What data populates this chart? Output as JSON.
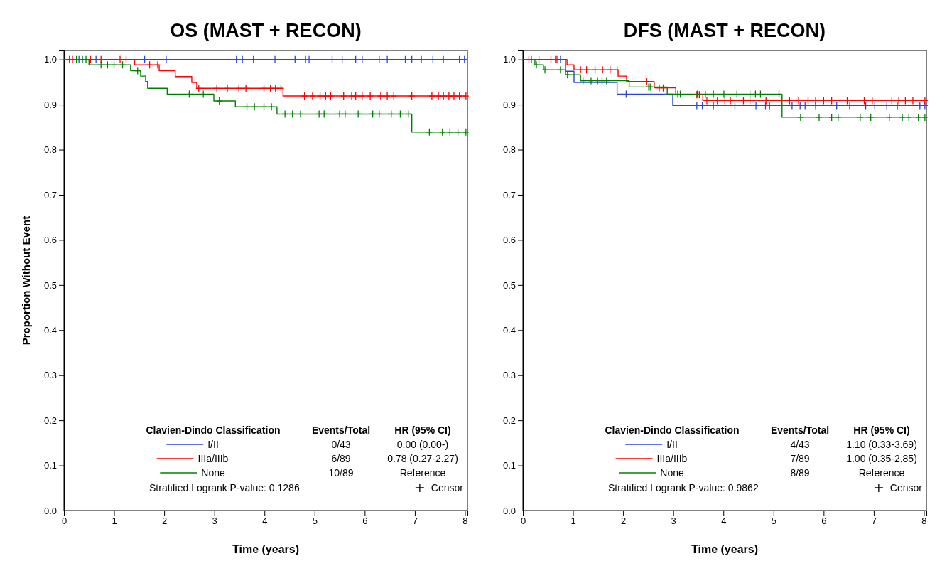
{
  "chart_data": [
    {
      "type": "step",
      "title": "OS (MAST + RECON)",
      "xlabel": "Time (years)",
      "ylabel": "Proportion Without Event",
      "legend_title": "Clavien-Dindo Classification",
      "legend": "bottom",
      "line_style": "solid",
      "xlim": [
        0,
        8.05
      ],
      "ylim": [
        0,
        1.02
      ],
      "xticks": [
        0,
        1,
        2,
        3,
        4,
        5,
        6,
        7,
        8
      ],
      "yticks": [
        {
          "value": 0,
          "label": "0.0"
        },
        {
          "value": 0.1,
          "label": "0.1"
        },
        {
          "value": 0.2,
          "label": "0.2"
        },
        {
          "value": 0.3,
          "label": "0.3"
        },
        {
          "value": 0.4,
          "label": "0.4"
        },
        {
          "value": 0.5,
          "label": "0.5"
        },
        {
          "value": 0.6,
          "label": "0.6"
        },
        {
          "value": 0.7,
          "label": "0.7"
        },
        {
          "value": 0.8,
          "label": "0.8"
        },
        {
          "value": 0.9,
          "label": "0.9"
        },
        {
          "value": 1,
          "label": "1.0"
        }
      ],
      "annotations": [
        "Events/Total",
        "HR (95% CI)",
        "0/43",
        "0.00 (0.00-)",
        "6/89",
        "0.78 (0.27-2.27)",
        "10/89",
        "Reference",
        "Stratified Logrank P-value: 0.1286",
        "Censor"
      ],
      "series": [
        {
          "name": "I/II",
          "color": "#2b45d9",
          "x": [
            0,
            8.02
          ],
          "values": [
            1,
            1
          ]
        },
        {
          "name": "IIIa/IIIb",
          "color": "#ff0000",
          "x": [
            0,
            1.41,
            1.9,
            2.22,
            2.55,
            2.65,
            4.37,
            8.02
          ],
          "values": [
            1,
            0.988,
            0.975,
            0.962,
            0.949,
            0.936,
            0.919,
            0.919
          ]
        },
        {
          "name": "None",
          "color": "#008000",
          "x": [
            0,
            0.5,
            1.33,
            1.53,
            1.63,
            1.67,
            2.06,
            2.99,
            3.42,
            4.25,
            6.94,
            8.02
          ],
          "values": [
            1,
            0.988,
            0.975,
            0.963,
            0.951,
            0.936,
            0.923,
            0.908,
            0.895,
            0.879,
            0.839,
            0.839
          ]
        },
        {
          "type": "scatter",
          "marker": "cross",
          "color": "#2b45d9",
          "x": [
            0.3,
            0.64,
            1.61,
            2.04,
            3.44,
            3.56,
            3.78,
            4.21,
            4.61,
            4.82,
            4.89,
            5.35,
            5.55,
            5.82,
            5.95,
            6.29,
            6.45,
            6.81,
            6.94,
            7.13,
            7.36,
            7.57,
            7.89,
            7.99
          ],
          "values": [
            1,
            1,
            1,
            1,
            1,
            1,
            1,
            1,
            1,
            1,
            1,
            1,
            1,
            1,
            1,
            1,
            1,
            1,
            1,
            1,
            1,
            1,
            1,
            1
          ]
        },
        {
          "type": "scatter",
          "marker": "cross",
          "color": "#ff0000",
          "x": [
            0.11,
            0.17,
            0.53,
            0.74,
            1.12,
            1.24,
            1.71,
            1.87,
            2.69,
            3.05,
            3.26,
            3.49,
            3.63,
            3.99,
            4.12,
            4.22,
            4.33,
            4.8,
            4.96,
            5.11,
            5.22,
            5.32,
            5.58,
            5.74,
            5.82,
            5.95,
            6.11,
            6.32,
            6.45,
            6.58,
            6.94,
            7.34,
            7.47,
            7.57,
            7.68,
            7.78,
            7.89,
            8.02
          ],
          "values": [
            1,
            1,
            1,
            1,
            1,
            1,
            0.988,
            0.988,
            0.936,
            0.936,
            0.936,
            0.936,
            0.936,
            0.936,
            0.936,
            0.936,
            0.936,
            0.919,
            0.919,
            0.919,
            0.919,
            0.919,
            0.919,
            0.919,
            0.919,
            0.919,
            0.919,
            0.919,
            0.919,
            0.919,
            0.919,
            0.919,
            0.919,
            0.919,
            0.919,
            0.919,
            0.919,
            0.919
          ]
        },
        {
          "type": "scatter",
          "marker": "cross",
          "color": "#008000",
          "x": [
            0.25,
            0.37,
            0.44,
            0.74,
            0.87,
            1.0,
            1.17,
            1.47,
            2.5,
            2.78,
            3.1,
            3.65,
            3.8,
            3.99,
            4.14,
            4.41,
            4.56,
            4.72,
            5.09,
            5.19,
            5.5,
            5.61,
            5.87,
            6.16,
            6.29,
            6.53,
            6.71,
            6.87,
            7.29,
            7.55,
            7.7,
            7.86,
            8.02
          ],
          "values": [
            1,
            1,
            1,
            0.988,
            0.988,
            0.988,
            0.988,
            0.975,
            0.923,
            0.923,
            0.908,
            0.895,
            0.895,
            0.895,
            0.895,
            0.879,
            0.879,
            0.879,
            0.879,
            0.879,
            0.879,
            0.879,
            0.879,
            0.879,
            0.879,
            0.879,
            0.879,
            0.879,
            0.839,
            0.839,
            0.839,
            0.839,
            0.839
          ]
        }
      ]
    },
    {
      "type": "step",
      "title": "DFS (MAST + RECON)",
      "xlabel": "Time (years)",
      "legend_title": "Clavien-Dindo Classification",
      "legend": "bottom",
      "line_style": "solid",
      "xlim": [
        0,
        8.05
      ],
      "ylim": [
        0,
        1.02
      ],
      "xticks": [
        0,
        1,
        2,
        3,
        4,
        5,
        6,
        7,
        8
      ],
      "yticks": [
        {
          "value": 0,
          "label": "0.0"
        },
        {
          "value": 0.1,
          "label": "0.1"
        },
        {
          "value": 0.2,
          "label": "0.2"
        },
        {
          "value": 0.3,
          "label": "0.3"
        },
        {
          "value": 0.4,
          "label": "0.4"
        },
        {
          "value": 0.5,
          "label": "0.5"
        },
        {
          "value": 0.6,
          "label": "0.6"
        },
        {
          "value": 0.7,
          "label": "0.7"
        },
        {
          "value": 0.8,
          "label": "0.8"
        },
        {
          "value": 0.9,
          "label": "0.9"
        },
        {
          "value": 1,
          "label": "1.0"
        }
      ],
      "annotations": [
        "Events/Total",
        "HR (95% CI)",
        "4/43",
        "1.10 (0.33-3.69)",
        "7/89",
        "1.00 (0.35-2.85)",
        "8/89",
        "Reference",
        "Stratified Logrank P-value: 0.9862",
        "Censor"
      ],
      "series": [
        {
          "name": "I/II",
          "color": "#2b45d9",
          "x": [
            0,
            0.85,
            1.02,
            1.88,
            2.99,
            8.02
          ],
          "values": [
            1,
            0.974,
            0.949,
            0.923,
            0.898,
            0.898
          ]
        },
        {
          "name": "IIIa/IIIb",
          "color": "#ff0000",
          "x": [
            0,
            0.88,
            1.02,
            1.9,
            2.07,
            2.62,
            3.05,
            3.59,
            8.02
          ],
          "values": [
            1,
            0.988,
            0.977,
            0.963,
            0.951,
            0.937,
            0.922,
            0.909,
            0.909
          ]
        },
        {
          "name": "None",
          "color": "#008000",
          "x": [
            0,
            0.24,
            0.41,
            0.85,
            1.15,
            2.12,
            2.88,
            5.17,
            8.02
          ],
          "values": [
            1,
            0.988,
            0.977,
            0.966,
            0.953,
            0.939,
            0.923,
            0.872,
            0.872
          ]
        },
        {
          "type": "scatter",
          "marker": "cross",
          "color": "#2b45d9",
          "x": [
            0.32,
            0.65,
            0.75,
            2.06,
            3.47,
            3.58,
            3.8,
            4.23,
            4.65,
            4.84,
            4.92,
            5.37,
            5.53,
            5.63,
            5.84,
            6.26,
            6.52,
            6.84,
            7.02,
            7.26,
            7.47,
            7.92,
            8.02
          ],
          "values": [
            1,
            1,
            1,
            0.923,
            0.898,
            0.898,
            0.898,
            0.898,
            0.898,
            0.898,
            0.898,
            0.898,
            0.898,
            0.898,
            0.898,
            0.898,
            0.898,
            0.898,
            0.898,
            0.898,
            0.898,
            0.898,
            0.898
          ]
        },
        {
          "type": "scatter",
          "marker": "cross",
          "color": "#ff0000",
          "x": [
            0.12,
            0.17,
            0.56,
            0.68,
            1.15,
            1.27,
            1.44,
            1.59,
            1.74,
            1.88,
            2.47,
            2.72,
            2.8,
            3.47,
            3.52,
            3.67,
            3.88,
            4.03,
            4.14,
            4.4,
            4.53,
            4.85,
            5.16,
            5.32,
            5.5,
            5.69,
            5.84,
            6.0,
            6.16,
            6.47,
            6.81,
            6.97,
            7.36,
            7.5,
            7.63,
            7.78,
            8.02
          ],
          "values": [
            1,
            1,
            1,
            1,
            0.977,
            0.977,
            0.977,
            0.977,
            0.977,
            0.977,
            0.951,
            0.937,
            0.937,
            0.922,
            0.922,
            0.909,
            0.909,
            0.909,
            0.909,
            0.909,
            0.909,
            0.909,
            0.909,
            0.909,
            0.909,
            0.909,
            0.909,
            0.909,
            0.909,
            0.909,
            0.909,
            0.909,
            0.909,
            0.909,
            0.909,
            0.909,
            0.909
          ]
        },
        {
          "type": "scatter",
          "marker": "cross",
          "color": "#008000",
          "x": [
            0.27,
            0.44,
            0.75,
            0.89,
            1.2,
            1.36,
            1.49,
            1.58,
            1.67,
            2.51,
            2.54,
            3.09,
            3.14,
            3.48,
            3.64,
            3.8,
            4.01,
            4.27,
            4.53,
            4.64,
            4.74,
            5.11,
            5.54,
            5.91,
            6.16,
            6.29,
            6.73,
            6.94,
            7.31,
            7.57,
            7.7,
            7.89,
            8.02
          ],
          "values": [
            0.988,
            0.977,
            0.977,
            0.966,
            0.953,
            0.953,
            0.953,
            0.953,
            0.953,
            0.939,
            0.939,
            0.923,
            0.923,
            0.923,
            0.923,
            0.923,
            0.923,
            0.923,
            0.923,
            0.923,
            0.923,
            0.923,
            0.872,
            0.872,
            0.872,
            0.872,
            0.872,
            0.872,
            0.872,
            0.872,
            0.872,
            0.872,
            0.872
          ]
        }
      ]
    }
  ]
}
